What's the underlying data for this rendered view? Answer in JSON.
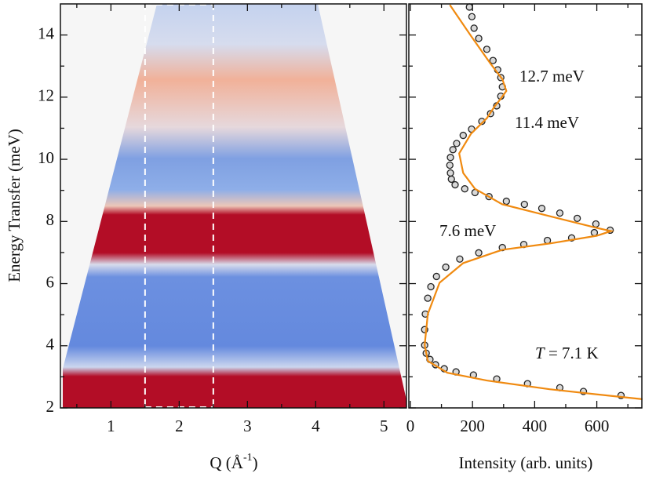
{
  "chart_data": [
    {
      "type": "heatmap",
      "x_label": {
        "main": "Q (Å",
        "sup": "-1",
        "end": ")"
      },
      "y_label": "Energy Transfer (meV)",
      "xlim": [
        0.26,
        5.33
      ],
      "ylim": [
        2,
        15
      ],
      "xticks": [
        1,
        2,
        3,
        4,
        5
      ],
      "xminor": [
        0.5,
        1.5,
        2.5,
        3.5,
        4.5
      ],
      "yticks": [
        2,
        4,
        6,
        8,
        10,
        12,
        14
      ],
      "yminor": [
        3,
        5,
        7,
        9,
        11,
        13
      ],
      "cut_lines": [
        1.5,
        2.5
      ]
    },
    {
      "type": "scatter",
      "x_label": "Intensity (arb. units)",
      "xlim": [
        -5,
        745
      ],
      "ylim": [
        2,
        15
      ],
      "xticks": [
        0,
        200,
        400,
        600
      ],
      "xminor": [
        100,
        300,
        500,
        700
      ],
      "yticks": [
        2,
        4,
        6,
        8,
        10,
        12,
        14
      ],
      "yminor": [
        3,
        5,
        7,
        9,
        11,
        13
      ],
      "ytick_labels": false,
      "series": [
        {
          "kind": "points",
          "color": "#222222",
          "x": [
            678,
            557,
            481,
            377,
            278,
            203,
            147,
            109,
            81,
            63,
            51,
            46,
            46,
            48,
            56,
            66,
            84,
            114,
            159,
            220,
            296,
            365,
            441,
            519,
            592,
            643,
            597,
            537,
            481,
            423,
            367,
            309,
            253,
            208,
            175,
            144,
            132,
            129,
            127,
            129,
            137,
            149,
            170,
            197,
            230,
            258,
            278,
            291,
            296,
            291,
            281,
            266,
            246,
            220,
            205,
            198,
            190
          ],
          "values": [
            2.4,
            2.53,
            2.65,
            2.78,
            2.93,
            3.06,
            3.16,
            3.26,
            3.39,
            3.56,
            3.76,
            4.02,
            4.52,
            5.02,
            5.53,
            5.9,
            6.23,
            6.53,
            6.79,
            6.99,
            7.16,
            7.26,
            7.39,
            7.47,
            7.64,
            7.72,
            7.92,
            8.1,
            8.27,
            8.42,
            8.55,
            8.65,
            8.8,
            8.93,
            9.05,
            9.18,
            9.36,
            9.56,
            9.81,
            10.06,
            10.31,
            10.51,
            10.77,
            10.97,
            11.22,
            11.47,
            11.72,
            12.03,
            12.33,
            12.63,
            12.88,
            13.18,
            13.54,
            13.89,
            14.22,
            14.59,
            14.9
          ]
        },
        {
          "kind": "line",
          "color": "#f08a10",
          "x": [
            747,
            651,
            448,
            246,
            119,
            56,
            46,
            56,
            94,
            170,
            296,
            448,
            600,
            646,
            600,
            448,
            296,
            208,
            170,
            157,
            195,
            246,
            271,
            291,
            309,
            296,
            258,
            195,
            127
          ],
          "values": [
            2.28,
            2.38,
            2.6,
            2.88,
            3.13,
            3.51,
            4.02,
            5.02,
            6.03,
            6.66,
            7.09,
            7.29,
            7.54,
            7.69,
            7.79,
            8.17,
            8.55,
            9.05,
            9.56,
            10.19,
            10.82,
            11.32,
            11.7,
            11.95,
            12.2,
            12.58,
            13.08,
            13.97,
            14.97
          ]
        }
      ],
      "annotations": [
        "12.7 meV",
        "11.4 meV",
        "7.6 meV"
      ],
      "temperature": {
        "symbol": "T",
        "text": " = 7.1 K"
      }
    }
  ]
}
